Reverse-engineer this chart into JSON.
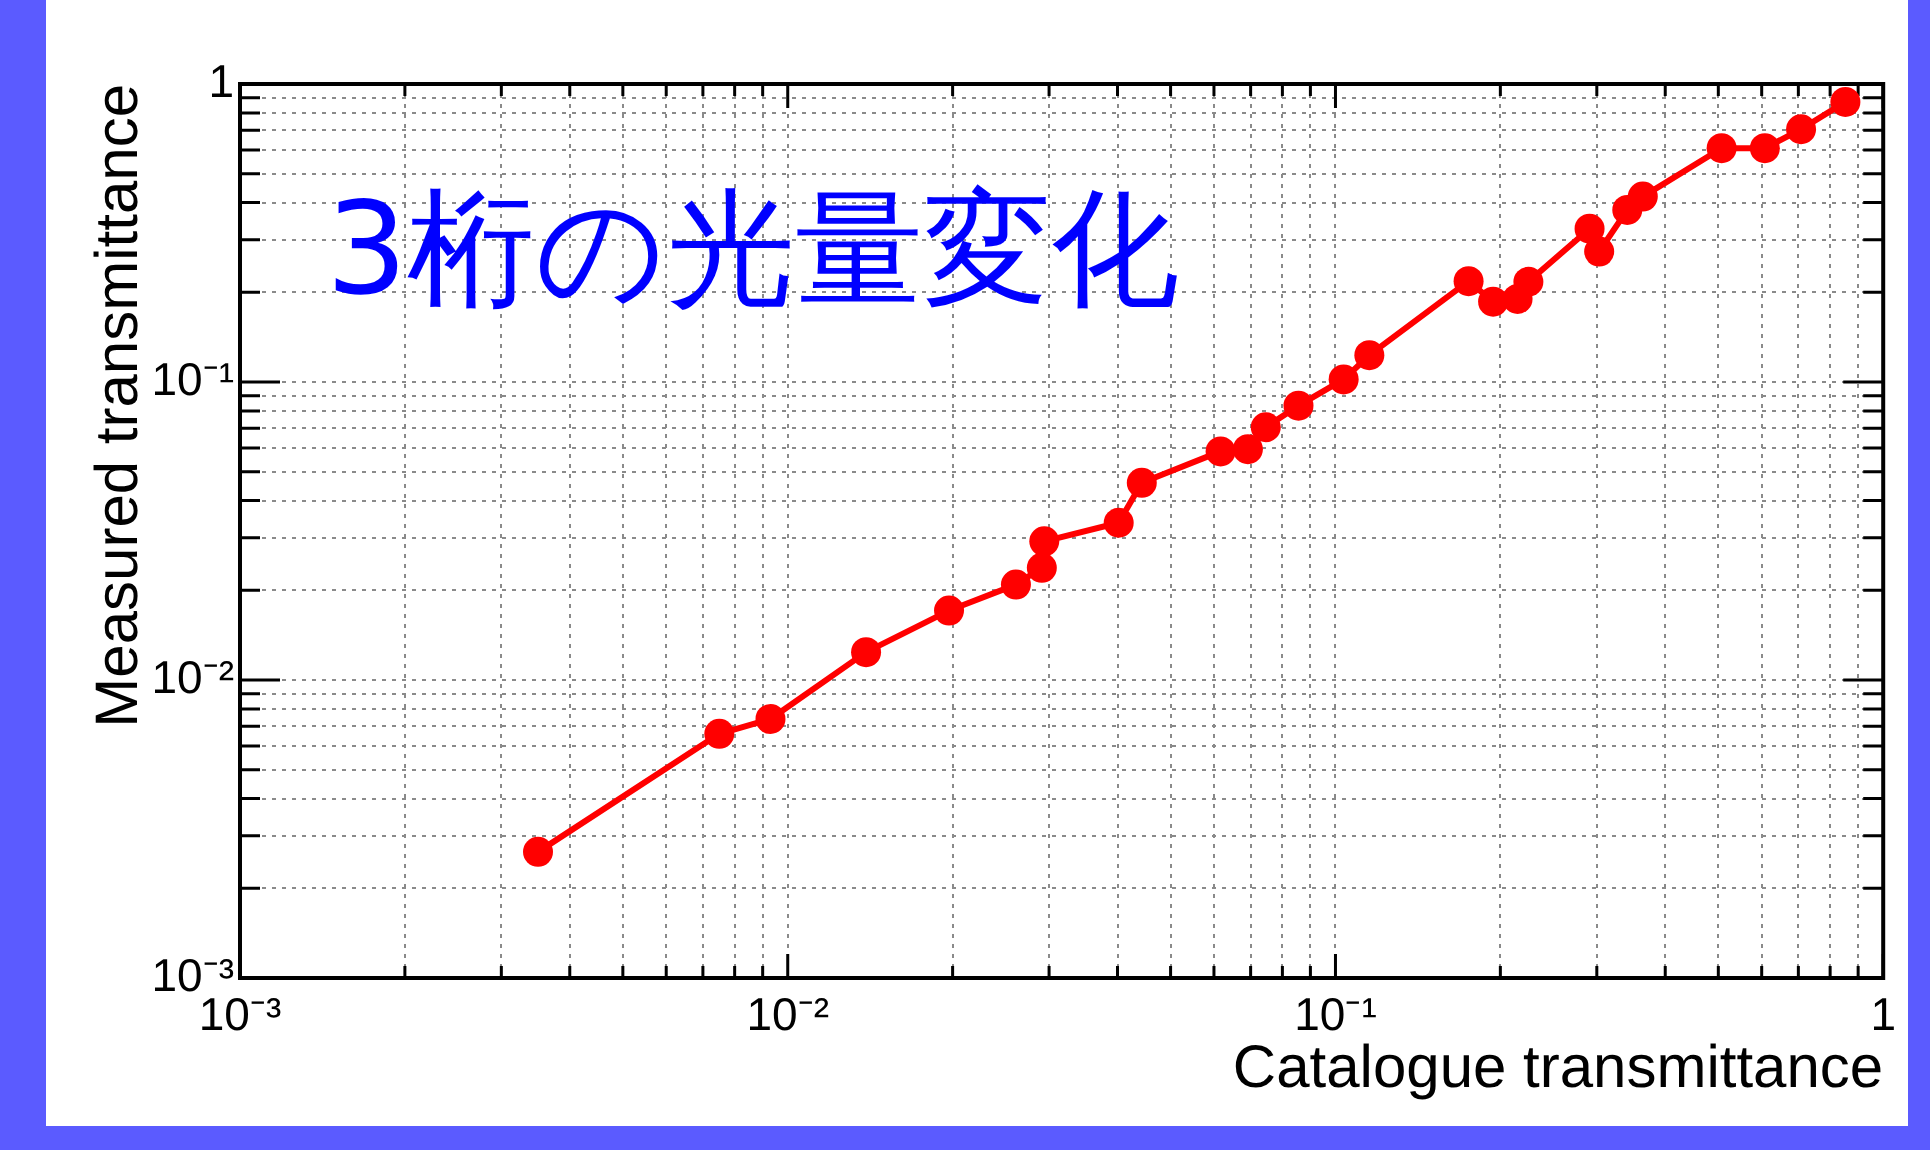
{
  "chart_data": {
    "type": "line",
    "annotations": [
      "3桁の光量変化"
    ],
    "xlabel": "Catalogue transmittance",
    "ylabel": "Measured transmittance",
    "x": [
      0.0035,
      0.0075,
      0.0093,
      0.0139,
      0.0197,
      0.0261,
      0.0291,
      0.0294,
      0.0402,
      0.0443,
      0.0617,
      0.0692,
      0.0746,
      0.0856,
      0.1035,
      0.1153,
      0.175,
      0.194,
      0.215,
      0.225,
      0.291,
      0.303,
      0.341,
      0.364,
      0.507,
      0.608,
      0.708,
      0.853
    ],
    "series": [
      {
        "color": "#ff0000",
        "values": [
          0.00265,
          0.0066,
          0.0074,
          0.0124,
          0.0171,
          0.0209,
          0.0238,
          0.0292,
          0.0337,
          0.0459,
          0.0585,
          0.0595,
          0.0705,
          0.0833,
          0.102,
          0.123,
          0.218,
          0.186,
          0.19,
          0.217,
          0.327,
          0.274,
          0.378,
          0.419,
          0.609,
          0.609,
          0.705,
          0.871
        ]
      }
    ],
    "xlim": [
      0.001,
      1
    ],
    "ylim": [
      0.001,
      1
    ],
    "xticks": [
      {
        "value": 0.001,
        "label": "10⁻³"
      },
      {
        "value": 0.002,
        "label": null
      },
      {
        "value": 0.003,
        "label": null
      },
      {
        "value": 0.004,
        "label": null
      },
      {
        "value": 0.005,
        "label": null
      },
      {
        "value": 0.006,
        "label": null
      },
      {
        "value": 0.007,
        "label": null
      },
      {
        "value": 0.008,
        "label": null
      },
      {
        "value": 0.009,
        "label": null
      },
      {
        "value": 0.01,
        "label": "10⁻²"
      },
      {
        "value": 0.02,
        "label": null
      },
      {
        "value": 0.03,
        "label": null
      },
      {
        "value": 0.04,
        "label": null
      },
      {
        "value": 0.05,
        "label": null
      },
      {
        "value": 0.06,
        "label": null
      },
      {
        "value": 0.07,
        "label": null
      },
      {
        "value": 0.08,
        "label": null
      },
      {
        "value": 0.09,
        "label": null
      },
      {
        "value": 0.1,
        "label": "10⁻¹"
      },
      {
        "value": 0.2,
        "label": null
      },
      {
        "value": 0.3,
        "label": null
      },
      {
        "value": 0.4,
        "label": null
      },
      {
        "value": 0.5,
        "label": null
      },
      {
        "value": 0.6,
        "label": null
      },
      {
        "value": 0.7,
        "label": null
      },
      {
        "value": 0.8,
        "label": null
      },
      {
        "value": 0.9,
        "label": null
      },
      1
    ],
    "yticks": [
      {
        "value": 0.001,
        "label": "10⁻³"
      },
      {
        "value": 0.002,
        "label": null
      },
      {
        "value": 0.003,
        "label": null
      },
      {
        "value": 0.004,
        "label": null
      },
      {
        "value": 0.005,
        "label": null
      },
      {
        "value": 0.006,
        "label": null
      },
      {
        "value": 0.007,
        "label": null
      },
      {
        "value": 0.008,
        "label": null
      },
      {
        "value": 0.009,
        "label": null
      },
      {
        "value": 0.01,
        "label": "10⁻²"
      },
      {
        "value": 0.02,
        "label": null
      },
      {
        "value": 0.03,
        "label": null
      },
      {
        "value": 0.04,
        "label": null
      },
      {
        "value": 0.05,
        "label": null
      },
      {
        "value": 0.06,
        "label": null
      },
      {
        "value": 0.07,
        "label": null
      },
      {
        "value": 0.08,
        "label": null
      },
      {
        "value": 0.09,
        "label": null
      },
      {
        "value": 0.1,
        "label": "10⁻¹"
      },
      {
        "value": 0.2,
        "label": null
      },
      {
        "value": 0.3,
        "label": null
      },
      {
        "value": 0.4,
        "label": null
      },
      {
        "value": 0.5,
        "label": null
      },
      {
        "value": 0.6,
        "label": null
      },
      {
        "value": 0.7,
        "label": null
      },
      {
        "value": 0.8,
        "label": null
      },
      {
        "value": 0.9,
        "label": null
      },
      1
    ],
    "log": "xy",
    "grid": true,
    "legend": false,
    "marker": "circle",
    "line_style": "solid"
  }
}
